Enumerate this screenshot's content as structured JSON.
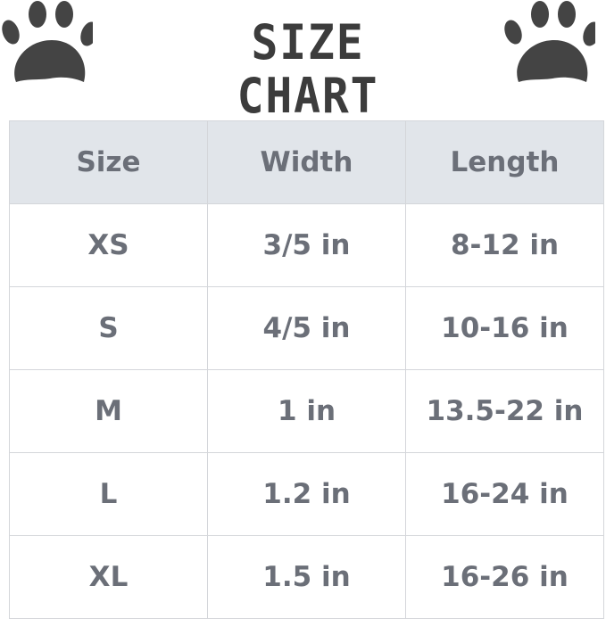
{
  "title": "SIZE CHART",
  "icons": {
    "left": "paw-print-icon",
    "right": "paw-print-icon"
  },
  "colors": {
    "header_bg": "#e1e5ea",
    "text": "#6b6f78",
    "title": "#3c3c3c",
    "paw": "#444444"
  },
  "table": {
    "headers": [
      "Size",
      "Width",
      "Length"
    ],
    "rows": [
      [
        "XS",
        "3/5 in",
        "8-12 in"
      ],
      [
        "S",
        "4/5 in",
        "10-16 in"
      ],
      [
        "M",
        "1 in",
        "13.5-22 in"
      ],
      [
        "L",
        "1.2 in",
        "16-24 in"
      ],
      [
        "XL",
        "1.5 in",
        "16-26 in"
      ]
    ]
  }
}
